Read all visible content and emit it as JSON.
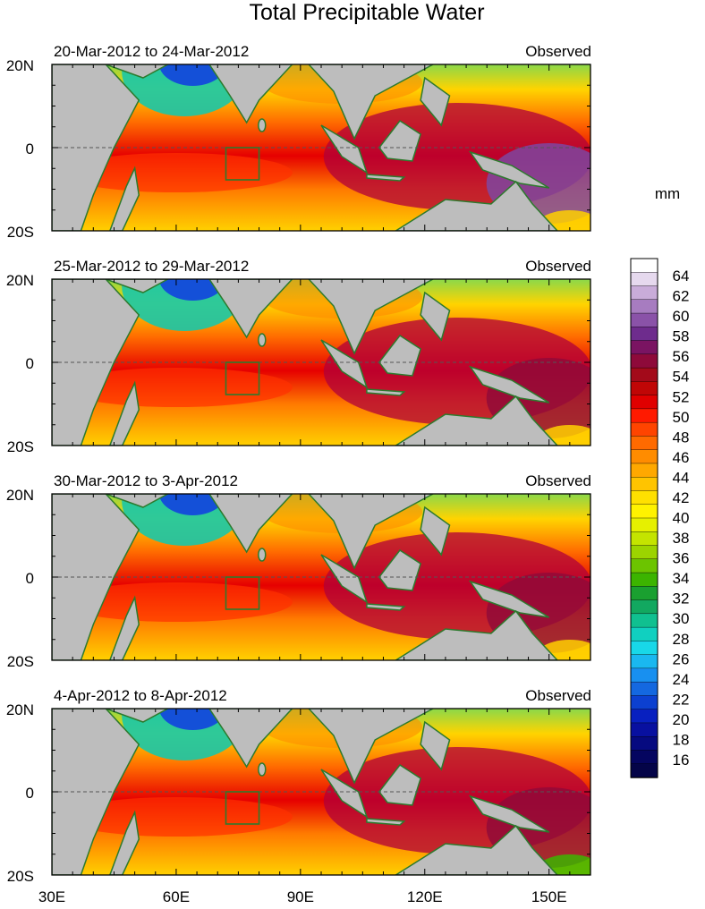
{
  "title": "Total Precipitable Water",
  "unit": "mm",
  "panels": [
    {
      "date_range": "20-Mar-2012 to 24-Mar-2012",
      "label": "Observed"
    },
    {
      "date_range": "25-Mar-2012 to 29-Mar-2012",
      "label": "Observed"
    },
    {
      "date_range": "30-Mar-2012 to 3-Apr-2012",
      "label": "Observed"
    },
    {
      "date_range": "4-Apr-2012 to 8-Apr-2012",
      "label": "Observed"
    }
  ],
  "lat_labels": [
    "20N",
    "0",
    "20S"
  ],
  "lon_labels": [
    "30E",
    "60E",
    "90E",
    "120E",
    "150E"
  ],
  "colorbar": {
    "labels": [
      "64",
      "62",
      "60",
      "58",
      "56",
      "54",
      "52",
      "50",
      "48",
      "46",
      "44",
      "42",
      "40",
      "38",
      "36",
      "34",
      "32",
      "30",
      "28",
      "26",
      "24",
      "22",
      "20",
      "18",
      "16"
    ],
    "colors": [
      "#ffffff",
      "#e6d9ee",
      "#c9acd9",
      "#a77cc0",
      "#8a52a8",
      "#6e2c8d",
      "#7a1462",
      "#8e0a3a",
      "#a30a1a",
      "#c00606",
      "#e00000",
      "#ff1a00",
      "#ff4400",
      "#ff6a00",
      "#ff8c00",
      "#ffa800",
      "#ffc400",
      "#ffe000",
      "#fff200",
      "#e6f000",
      "#c4e400",
      "#9cd400",
      "#6cc400",
      "#3cb400",
      "#1aa030",
      "#12a860",
      "#10c090",
      "#10d0c0",
      "#18d8e8",
      "#1ab8f0",
      "#1890f0",
      "#1468e0",
      "#0c40d0",
      "#0820c0",
      "#0810a0",
      "#060a80",
      "#050560",
      "#040448"
    ]
  }
}
